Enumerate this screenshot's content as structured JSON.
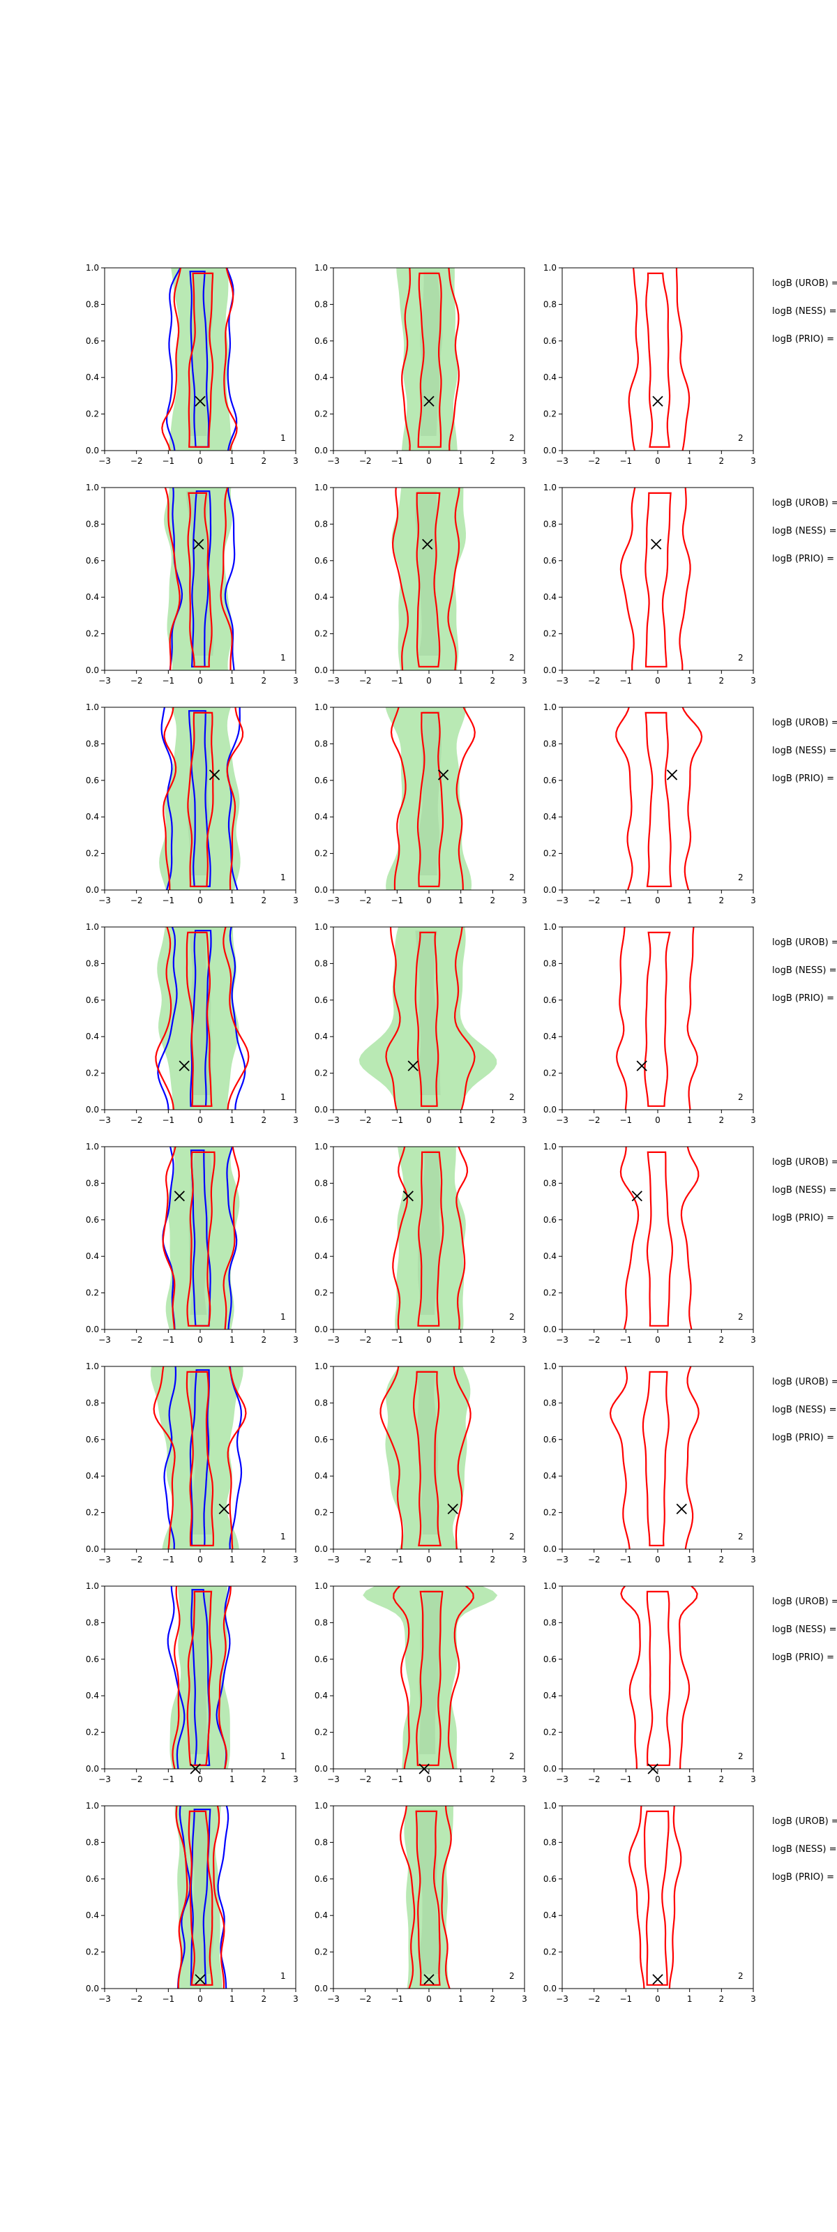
{
  "figure": {
    "panel_tags": [
      "1",
      "2",
      "2"
    ],
    "side_labels": [
      "logB (UROB) =",
      "logB (NESS) =",
      "logB (PRIO) ="
    ],
    "colors": {
      "fill": "#b9e9b4",
      "fill_inner": "#a4d4a0",
      "blue": "#0000ff",
      "red": "#ff0000",
      "olive": "#7f7f00",
      "axis": "#000000"
    }
  },
  "chart_data": {
    "type": "contour",
    "xlim": [
      -3,
      3
    ],
    "ylim": [
      0,
      1
    ],
    "xticks": [
      "−3",
      "−2",
      "−1",
      "0",
      "1",
      "2",
      "3"
    ],
    "yticks": [
      "0.0",
      "0.2",
      "0.4",
      "0.6",
      "0.8",
      "1.0"
    ],
    "columns": [
      "1",
      "2",
      "2"
    ],
    "rows": [
      {
        "marker": [
          0.0,
          0.27
        ]
      },
      {
        "marker": [
          -0.05,
          0.69
        ]
      },
      {
        "marker": [
          0.45,
          0.63
        ]
      },
      {
        "marker": [
          -0.5,
          0.24
        ]
      },
      {
        "marker": [
          -0.65,
          0.73
        ]
      },
      {
        "marker": [
          0.75,
          0.22
        ]
      },
      {
        "marker": [
          -0.15,
          0.0
        ]
      },
      {
        "marker": [
          0.0,
          0.05
        ]
      }
    ]
  }
}
